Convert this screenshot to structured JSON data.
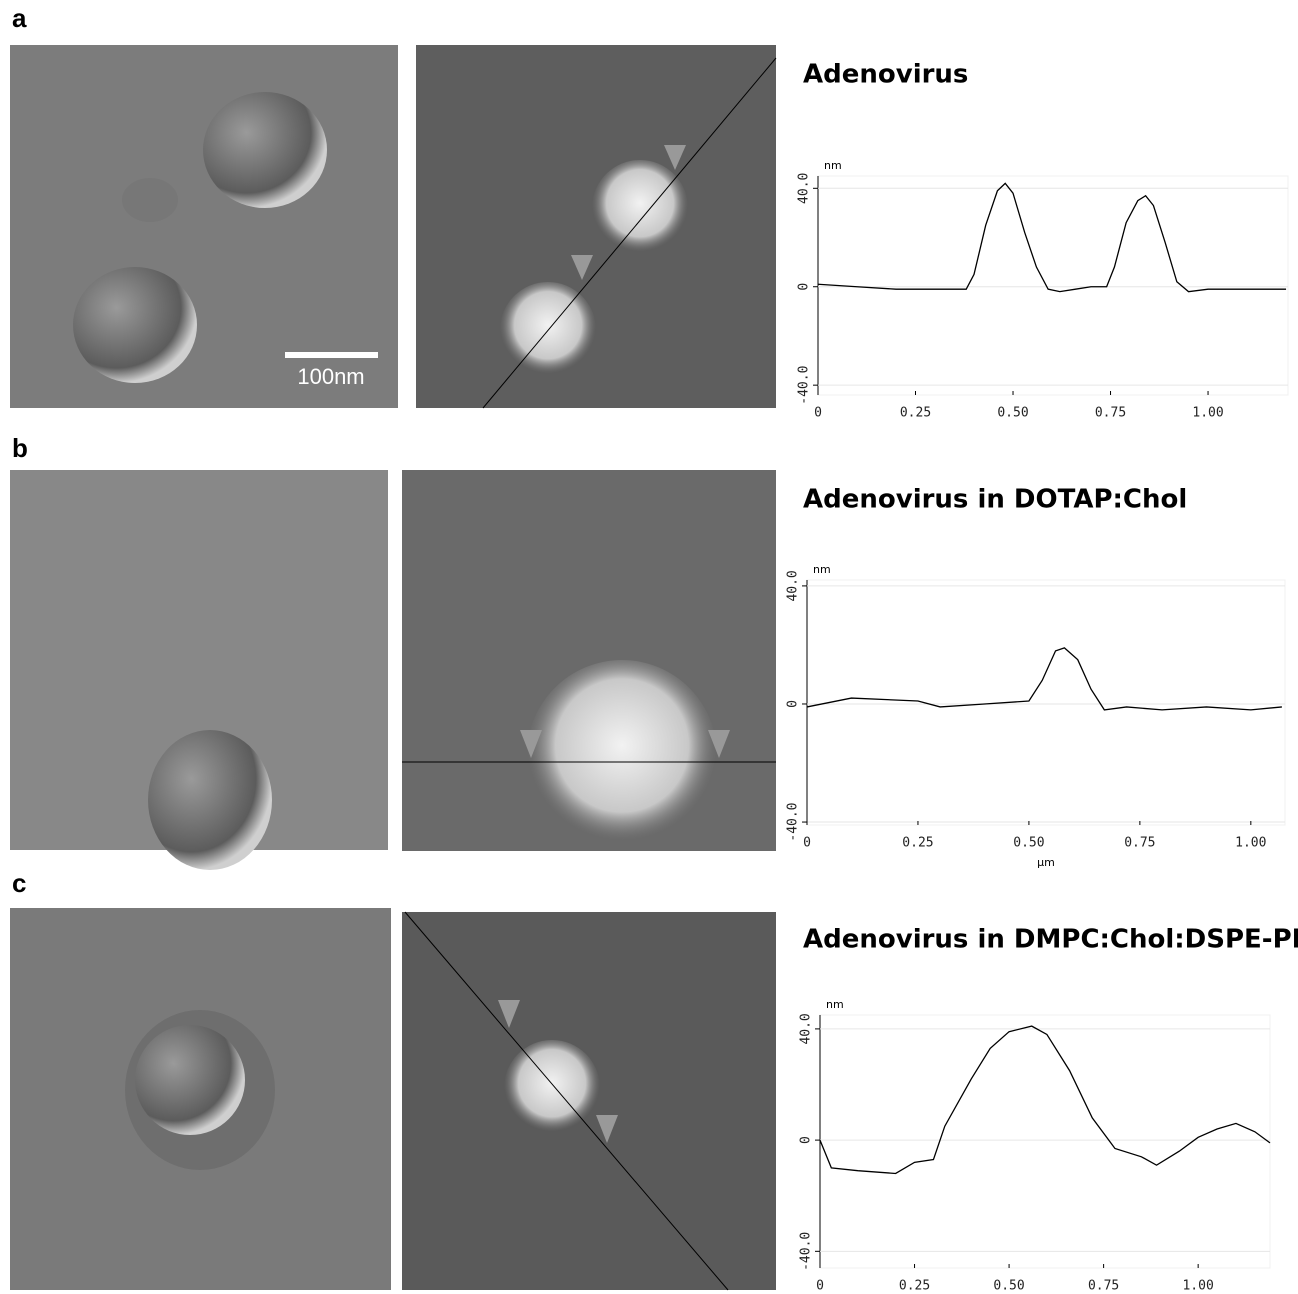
{
  "chart_data": [
    {
      "type": "line",
      "panel": "a",
      "title": "Adenovirus",
      "scale_bar_label": "100nm",
      "unit_label": "nm",
      "x": [
        0,
        0.1,
        0.2,
        0.3,
        0.38,
        0.4,
        0.43,
        0.46,
        0.48,
        0.5,
        0.53,
        0.56,
        0.59,
        0.62,
        0.66,
        0.7,
        0.74,
        0.76,
        0.79,
        0.82,
        0.84,
        0.86,
        0.89,
        0.92,
        0.95,
        1.0,
        1.1,
        1.2
      ],
      "values": [
        1,
        0,
        -1,
        -1,
        -1,
        5,
        25,
        39,
        42,
        38,
        22,
        8,
        -1,
        -2,
        -1,
        0,
        0,
        8,
        26,
        35,
        37,
        33,
        18,
        2,
        -2,
        -1,
        -1,
        -1
      ],
      "color": "#000000",
      "xlim": [
        0,
        1.205
      ],
      "ylim": [
        -44,
        45
      ],
      "xticks": [
        0,
        0.25,
        {
          "value": 0.5,
          "label": "0.50"
        },
        0.75,
        {
          "value": 1,
          "label": "1.00"
        }
      ],
      "yticks": [
        {
          "value": 40,
          "label": "40.0"
        },
        0,
        {
          "value": -40,
          "label": "-40.0"
        }
      ]
    },
    {
      "type": "line",
      "panel": "b",
      "title": "Adenovirus in DOTAP:Chol",
      "unit_label": "nm",
      "x_label": "μm",
      "x": [
        0,
        0.1,
        0.25,
        0.3,
        0.4,
        0.5,
        0.53,
        0.56,
        0.58,
        0.61,
        0.64,
        0.67,
        0.72,
        0.8,
        0.9,
        1.0,
        1.07
      ],
      "values": [
        -1,
        2,
        1,
        -1,
        0,
        1,
        8,
        18,
        19,
        15,
        5,
        -2,
        -1,
        -2,
        -1,
        -2,
        -1
      ],
      "color": "#000000",
      "xlim": [
        0,
        1.077
      ],
      "ylim": [
        -41,
        42
      ],
      "xticks": [
        0,
        0.25,
        {
          "value": 0.5,
          "label": "0.50"
        },
        0.75,
        {
          "value": 1,
          "label": "1.00"
        }
      ],
      "yticks": [
        {
          "value": 40,
          "label": "40.0"
        },
        0,
        {
          "value": -40,
          "label": "-40.0"
        }
      ]
    },
    {
      "type": "line",
      "panel": "c",
      "title": "Adenovirus in DMPC:Chol:DSPE-PEG",
      "unit_label": "nm",
      "x": [
        0,
        0.03,
        0.1,
        0.2,
        0.25,
        0.3,
        0.33,
        0.4,
        0.45,
        0.5,
        0.56,
        0.6,
        0.66,
        0.72,
        0.78,
        0.85,
        0.89,
        0.95,
        1.0,
        1.05,
        1.1,
        1.15,
        1.19
      ],
      "values": [
        0,
        -10,
        -11,
        -12,
        -8,
        -7,
        5,
        22,
        33,
        39,
        41,
        38,
        25,
        8,
        -3,
        -6,
        -9,
        -4,
        1,
        4,
        6,
        3,
        -1
      ],
      "color": "#000000",
      "xlim": [
        0,
        1.19
      ],
      "ylim": [
        -46,
        45
      ],
      "xticks": [
        0,
        0.25,
        {
          "value": 0.5,
          "label": "0.50"
        },
        0.75,
        {
          "value": 1,
          "label": "1.00"
        }
      ],
      "yticks": [
        {
          "value": 40,
          "label": "40.0"
        },
        0,
        {
          "value": -40,
          "label": "-40.0"
        }
      ]
    }
  ]
}
